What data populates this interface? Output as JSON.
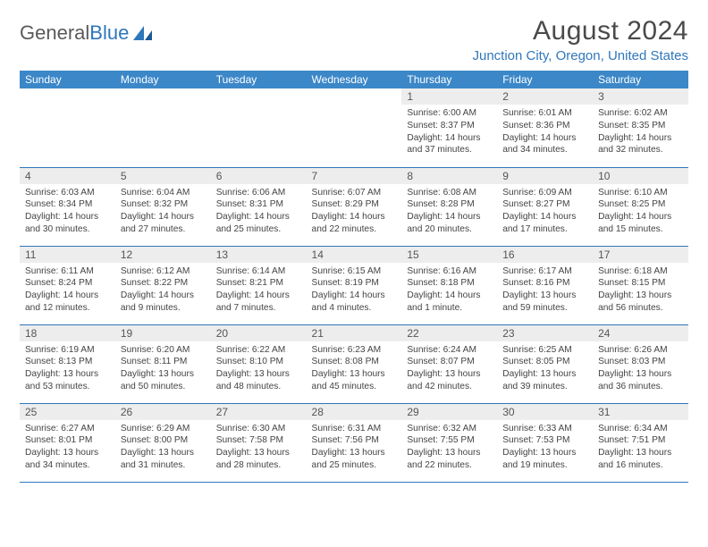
{
  "logo": {
    "text1": "General",
    "text2": "Blue"
  },
  "title": "August 2024",
  "location": "Junction City, Oregon, United States",
  "colors": {
    "header_bg": "#3b87c8",
    "header_text": "#ffffff",
    "accent": "#2f77bb",
    "daynum_bg": "#ededed",
    "text": "#444444"
  },
  "weekdays": [
    "Sunday",
    "Monday",
    "Tuesday",
    "Wednesday",
    "Thursday",
    "Friday",
    "Saturday"
  ],
  "weeks": [
    [
      {
        "empty": true
      },
      {
        "empty": true
      },
      {
        "empty": true
      },
      {
        "empty": true
      },
      {
        "n": "1",
        "sunrise": "6:00 AM",
        "sunset": "8:37 PM",
        "daylight": "14 hours and 37 minutes."
      },
      {
        "n": "2",
        "sunrise": "6:01 AM",
        "sunset": "8:36 PM",
        "daylight": "14 hours and 34 minutes."
      },
      {
        "n": "3",
        "sunrise": "6:02 AM",
        "sunset": "8:35 PM",
        "daylight": "14 hours and 32 minutes."
      }
    ],
    [
      {
        "n": "4",
        "sunrise": "6:03 AM",
        "sunset": "8:34 PM",
        "daylight": "14 hours and 30 minutes."
      },
      {
        "n": "5",
        "sunrise": "6:04 AM",
        "sunset": "8:32 PM",
        "daylight": "14 hours and 27 minutes."
      },
      {
        "n": "6",
        "sunrise": "6:06 AM",
        "sunset": "8:31 PM",
        "daylight": "14 hours and 25 minutes."
      },
      {
        "n": "7",
        "sunrise": "6:07 AM",
        "sunset": "8:29 PM",
        "daylight": "14 hours and 22 minutes."
      },
      {
        "n": "8",
        "sunrise": "6:08 AM",
        "sunset": "8:28 PM",
        "daylight": "14 hours and 20 minutes."
      },
      {
        "n": "9",
        "sunrise": "6:09 AM",
        "sunset": "8:27 PM",
        "daylight": "14 hours and 17 minutes."
      },
      {
        "n": "10",
        "sunrise": "6:10 AM",
        "sunset": "8:25 PM",
        "daylight": "14 hours and 15 minutes."
      }
    ],
    [
      {
        "n": "11",
        "sunrise": "6:11 AM",
        "sunset": "8:24 PM",
        "daylight": "14 hours and 12 minutes."
      },
      {
        "n": "12",
        "sunrise": "6:12 AM",
        "sunset": "8:22 PM",
        "daylight": "14 hours and 9 minutes."
      },
      {
        "n": "13",
        "sunrise": "6:14 AM",
        "sunset": "8:21 PM",
        "daylight": "14 hours and 7 minutes."
      },
      {
        "n": "14",
        "sunrise": "6:15 AM",
        "sunset": "8:19 PM",
        "daylight": "14 hours and 4 minutes."
      },
      {
        "n": "15",
        "sunrise": "6:16 AM",
        "sunset": "8:18 PM",
        "daylight": "14 hours and 1 minute."
      },
      {
        "n": "16",
        "sunrise": "6:17 AM",
        "sunset": "8:16 PM",
        "daylight": "13 hours and 59 minutes."
      },
      {
        "n": "17",
        "sunrise": "6:18 AM",
        "sunset": "8:15 PM",
        "daylight": "13 hours and 56 minutes."
      }
    ],
    [
      {
        "n": "18",
        "sunrise": "6:19 AM",
        "sunset": "8:13 PM",
        "daylight": "13 hours and 53 minutes."
      },
      {
        "n": "19",
        "sunrise": "6:20 AM",
        "sunset": "8:11 PM",
        "daylight": "13 hours and 50 minutes."
      },
      {
        "n": "20",
        "sunrise": "6:22 AM",
        "sunset": "8:10 PM",
        "daylight": "13 hours and 48 minutes."
      },
      {
        "n": "21",
        "sunrise": "6:23 AM",
        "sunset": "8:08 PM",
        "daylight": "13 hours and 45 minutes."
      },
      {
        "n": "22",
        "sunrise": "6:24 AM",
        "sunset": "8:07 PM",
        "daylight": "13 hours and 42 minutes."
      },
      {
        "n": "23",
        "sunrise": "6:25 AM",
        "sunset": "8:05 PM",
        "daylight": "13 hours and 39 minutes."
      },
      {
        "n": "24",
        "sunrise": "6:26 AM",
        "sunset": "8:03 PM",
        "daylight": "13 hours and 36 minutes."
      }
    ],
    [
      {
        "n": "25",
        "sunrise": "6:27 AM",
        "sunset": "8:01 PM",
        "daylight": "13 hours and 34 minutes."
      },
      {
        "n": "26",
        "sunrise": "6:29 AM",
        "sunset": "8:00 PM",
        "daylight": "13 hours and 31 minutes."
      },
      {
        "n": "27",
        "sunrise": "6:30 AM",
        "sunset": "7:58 PM",
        "daylight": "13 hours and 28 minutes."
      },
      {
        "n": "28",
        "sunrise": "6:31 AM",
        "sunset": "7:56 PM",
        "daylight": "13 hours and 25 minutes."
      },
      {
        "n": "29",
        "sunrise": "6:32 AM",
        "sunset": "7:55 PM",
        "daylight": "13 hours and 22 minutes."
      },
      {
        "n": "30",
        "sunrise": "6:33 AM",
        "sunset": "7:53 PM",
        "daylight": "13 hours and 19 minutes."
      },
      {
        "n": "31",
        "sunrise": "6:34 AM",
        "sunset": "7:51 PM",
        "daylight": "13 hours and 16 minutes."
      }
    ]
  ],
  "labels": {
    "sunrise": "Sunrise:",
    "sunset": "Sunset:",
    "daylight": "Daylight:"
  }
}
